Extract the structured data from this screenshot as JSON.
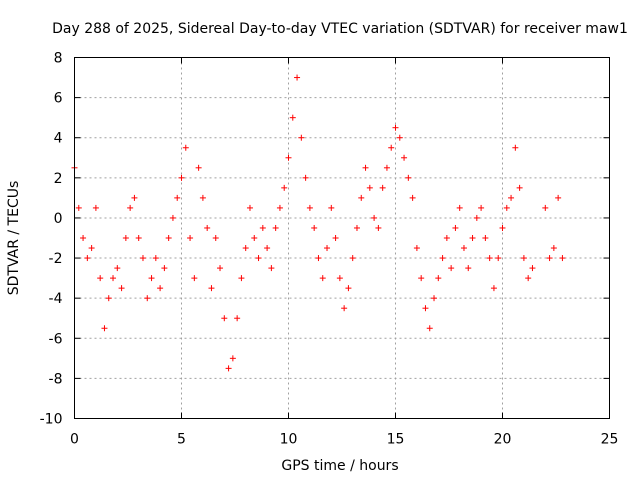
{
  "chart_data": {
    "type": "scatter",
    "title": "Day 288 of 2025, Sidereal Day-to-day VTEC variation (SDTVAR) for receiver maw1",
    "xlabel": "GPS time / hours",
    "ylabel": "SDTVAR / TECUs",
    "xlim": [
      0,
      25
    ],
    "ylim": [
      -10,
      8
    ],
    "xticks": [
      0,
      5,
      10,
      15,
      20,
      25
    ],
    "yticks": [
      -10,
      -8,
      -6,
      -4,
      -2,
      0,
      2,
      4,
      6,
      8
    ],
    "grid": true,
    "marker": "+",
    "color": "#ff0000",
    "series": [
      {
        "name": "SDTVAR",
        "x": [
          0.0,
          0.2,
          0.4,
          0.6,
          0.8,
          1.0,
          1.2,
          1.4,
          1.6,
          1.8,
          2.0,
          2.2,
          2.4,
          2.6,
          2.8,
          3.0,
          3.2,
          3.4,
          3.6,
          3.8,
          4.0,
          4.2,
          4.4,
          4.6,
          4.8,
          5.0,
          5.2,
          5.4,
          5.6,
          5.8,
          6.0,
          6.2,
          6.4,
          6.6,
          6.8,
          7.0,
          7.2,
          7.4,
          7.6,
          7.8,
          8.0,
          8.2,
          8.4,
          8.6,
          8.8,
          9.0,
          9.2,
          9.4,
          9.6,
          9.8,
          10.0,
          10.2,
          10.4,
          10.6,
          10.8,
          11.0,
          11.2,
          11.4,
          11.6,
          11.8,
          12.0,
          12.2,
          12.4,
          12.6,
          12.8,
          13.0,
          13.2,
          13.4,
          13.6,
          13.8,
          14.0,
          14.2,
          14.4,
          14.6,
          14.8,
          15.0,
          15.2,
          15.4,
          15.6,
          15.8,
          16.0,
          16.2,
          16.4,
          16.6,
          16.8,
          17.0,
          17.2,
          17.4,
          17.6,
          17.8,
          18.0,
          18.2,
          18.4,
          18.6,
          18.8,
          19.0,
          19.2,
          19.4,
          19.6,
          19.8,
          20.0,
          20.2,
          20.4,
          20.6,
          20.8,
          21.0,
          21.2,
          21.4,
          22.0,
          22.2,
          22.4,
          22.6,
          22.8
        ],
        "y": [
          2.5,
          0.5,
          -1.0,
          -2.0,
          -1.5,
          0.5,
          -3.0,
          -5.5,
          -4.0,
          -3.0,
          -2.5,
          -3.5,
          -1.0,
          0.5,
          1.0,
          -1.0,
          -2.0,
          -4.0,
          -3.0,
          -2.0,
          -3.5,
          -2.5,
          -1.0,
          0.0,
          1.0,
          2.0,
          3.5,
          -1.0,
          -3.0,
          2.5,
          1.0,
          -0.5,
          -3.5,
          -1.0,
          -2.5,
          -5.0,
          -7.5,
          -7.0,
          -5.0,
          -3.0,
          -1.5,
          0.5,
          -1.0,
          -2.0,
          -0.5,
          -1.5,
          -2.5,
          -0.5,
          0.5,
          1.5,
          3.0,
          5.0,
          7.0,
          4.0,
          2.0,
          0.5,
          -0.5,
          -2.0,
          -3.0,
          -1.5,
          0.5,
          -1.0,
          -3.0,
          -4.5,
          -3.5,
          -2.0,
          -0.5,
          1.0,
          2.5,
          1.5,
          0.0,
          -0.5,
          1.5,
          2.5,
          3.5,
          4.5,
          4.0,
          3.0,
          2.0,
          1.0,
          -1.5,
          -3.0,
          -4.5,
          -5.5,
          -4.0,
          -3.0,
          -2.0,
          -1.0,
          -2.5,
          -0.5,
          0.5,
          -1.5,
          -2.5,
          -1.0,
          0.0,
          0.5,
          -1.0,
          -2.0,
          -3.5,
          -2.0,
          -0.5,
          0.5,
          1.0,
          3.5,
          1.5,
          -2.0,
          -3.0,
          -2.5,
          0.5,
          -2.0,
          -1.5,
          1.0,
          -2.0
        ]
      }
    ]
  }
}
